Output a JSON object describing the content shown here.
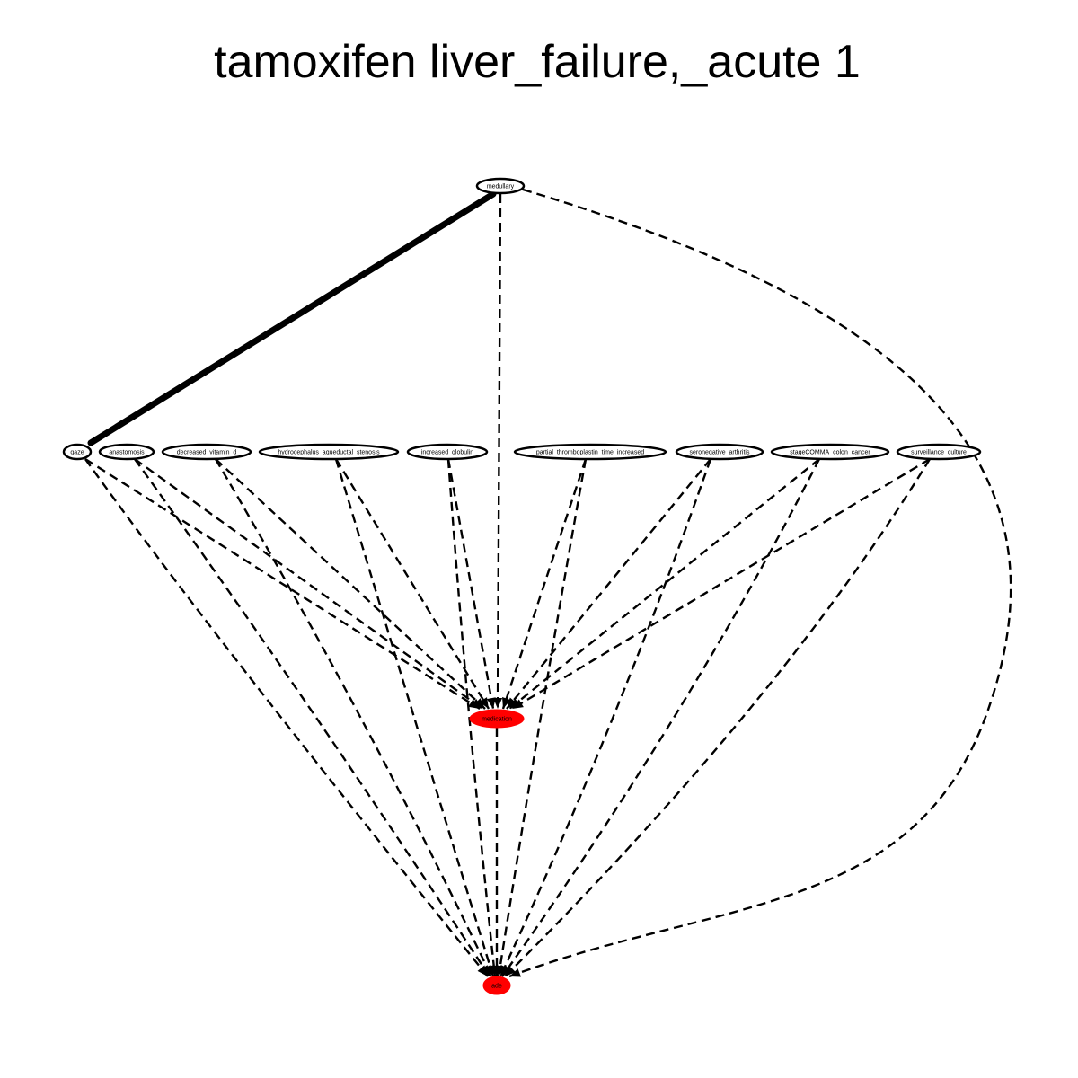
{
  "title": "tamoxifen liver_failure,_acute 1",
  "colors": {
    "highlight": "#ff0000",
    "outline": "#000000",
    "node_fill": "#ffffff"
  },
  "nodes": [
    {
      "id": "medullary",
      "label": "medullary",
      "highlight": false
    },
    {
      "id": "gaze",
      "label": "gaze",
      "highlight": false
    },
    {
      "id": "anastomosis",
      "label": "anastomosis",
      "highlight": false
    },
    {
      "id": "decreased_vitamin_d",
      "label": "decreased_vitamin_d",
      "highlight": false
    },
    {
      "id": "hydrocephalus_aqueductal_stenosis",
      "label": "hydrocephalus_aqueductal_stenosis",
      "highlight": false
    },
    {
      "id": "increased_globulin",
      "label": "increased_globulin",
      "highlight": false
    },
    {
      "id": "partial_thromboplastin_time_increased",
      "label": "partial_thromboplastin_time_increased",
      "highlight": false
    },
    {
      "id": "seronegative_arthritis",
      "label": "seronegative_arthritis",
      "highlight": false
    },
    {
      "id": "stageCOMMA_colon_cancer",
      "label": "stageCOMMA_colon_cancer",
      "highlight": false
    },
    {
      "id": "surveillance_culture",
      "label": "surveillance_culture",
      "highlight": false
    },
    {
      "id": "medication",
      "label": "medication",
      "highlight": true
    },
    {
      "id": "ade",
      "label": "ade",
      "highlight": true
    }
  ],
  "edges": [
    {
      "from": "medullary",
      "to": "gaze",
      "style": "solid"
    },
    {
      "from": "medullary",
      "to": "medication",
      "style": "dashed"
    },
    {
      "from": "medullary",
      "to": "ade",
      "style": "dashed"
    },
    {
      "from": "gaze",
      "to": "medication",
      "style": "dashed"
    },
    {
      "from": "gaze",
      "to": "ade",
      "style": "dashed"
    },
    {
      "from": "anastomosis",
      "to": "medication",
      "style": "dashed"
    },
    {
      "from": "anastomosis",
      "to": "ade",
      "style": "dashed"
    },
    {
      "from": "decreased_vitamin_d",
      "to": "medication",
      "style": "dashed"
    },
    {
      "from": "decreased_vitamin_d",
      "to": "ade",
      "style": "dashed"
    },
    {
      "from": "hydrocephalus_aqueductal_stenosis",
      "to": "medication",
      "style": "dashed"
    },
    {
      "from": "hydrocephalus_aqueductal_stenosis",
      "to": "ade",
      "style": "dashed"
    },
    {
      "from": "increased_globulin",
      "to": "medication",
      "style": "dashed"
    },
    {
      "from": "increased_globulin",
      "to": "ade",
      "style": "dashed"
    },
    {
      "from": "partial_thromboplastin_time_increased",
      "to": "medication",
      "style": "dashed"
    },
    {
      "from": "partial_thromboplastin_time_increased",
      "to": "ade",
      "style": "dashed"
    },
    {
      "from": "seronegative_arthritis",
      "to": "medication",
      "style": "dashed"
    },
    {
      "from": "seronegative_arthritis",
      "to": "ade",
      "style": "dashed"
    },
    {
      "from": "stageCOMMA_colon_cancer",
      "to": "medication",
      "style": "dashed"
    },
    {
      "from": "stageCOMMA_colon_cancer",
      "to": "ade",
      "style": "dashed"
    },
    {
      "from": "surveillance_culture",
      "to": "medication",
      "style": "dashed"
    },
    {
      "from": "surveillance_culture",
      "to": "ade",
      "style": "dashed"
    },
    {
      "from": "medication",
      "to": "ade",
      "style": "dashed"
    }
  ]
}
